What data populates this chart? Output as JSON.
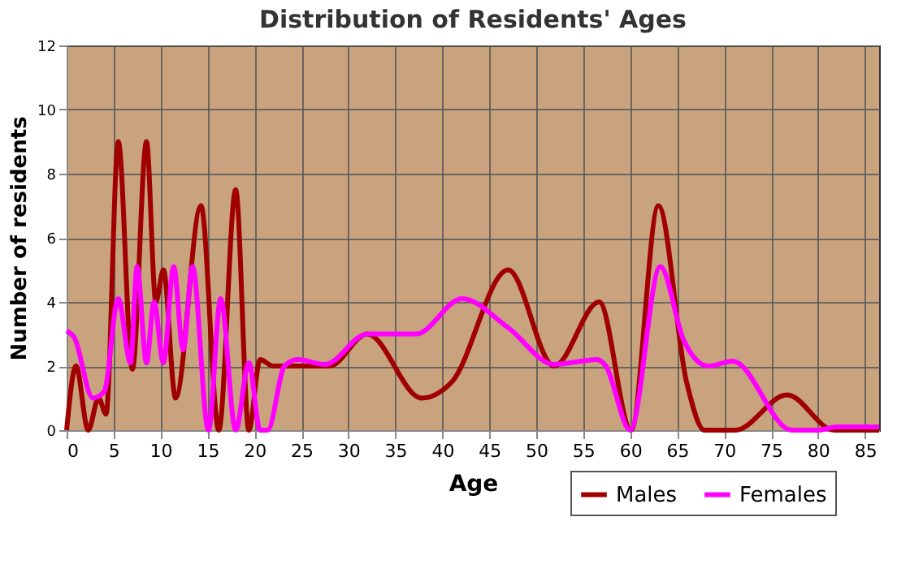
{
  "chart_data": {
    "type": "line",
    "title": "Distribution of Residents' Ages",
    "xlabel": "Age",
    "ylabel": "Number of residents",
    "xlim": [
      0,
      86.5
    ],
    "xticks": [
      0,
      5,
      10,
      15,
      20,
      25,
      30,
      35,
      40,
      45,
      50,
      55,
      60,
      65,
      70,
      75,
      80,
      85
    ],
    "ylim": [
      0,
      12
    ],
    "yticks": [
      0,
      2,
      4,
      6,
      8,
      10,
      12
    ],
    "grid": true,
    "legend": "bottom",
    "marker": "none",
    "line_style": "solid",
    "series": [
      {
        "name": "Males",
        "color": "#a00000",
        "x": [
          0,
          1,
          2.3,
          3.4,
          4.2,
          5.5,
          7,
          8.5,
          9.5,
          10.3,
          11.6,
          14.3,
          16.2,
          18,
          19.4,
          20.6,
          22,
          28,
          32,
          37.8,
          41,
          47,
          51.9,
          56.7,
          60.1,
          63,
          66,
          67.9,
          71.2,
          76.7,
          81.7,
          86.5
        ],
        "values": [
          0,
          2,
          0,
          1,
          0.5,
          9,
          1.9,
          9,
          4,
          5,
          1,
          7,
          0,
          7.5,
          0,
          2.2,
          2,
          2,
          3,
          1,
          1.5,
          5,
          2,
          4,
          0,
          7,
          1.5,
          0,
          0,
          1.1,
          0,
          0
        ]
      },
      {
        "name": "Females",
        "color": "#ff00ff",
        "x": [
          0,
          0.8,
          2.8,
          4,
          5.5,
          6.8,
          7.5,
          8.5,
          9.3,
          10.3,
          11.4,
          12.4,
          13.4,
          15.1,
          16.4,
          18,
          19.4,
          20.6,
          21.4,
          23.2,
          24.6,
          27.5,
          32,
          37.2,
          42.1,
          47,
          51.9,
          56.5,
          57.4,
          60,
          63.2,
          65.7,
          68.3,
          70.9,
          77.2,
          80,
          82,
          86.5
        ],
        "values": [
          3.1,
          2.9,
          1,
          1.2,
          4.1,
          2.1,
          5.1,
          2.1,
          4,
          2.1,
          5.1,
          2.5,
          5.1,
          0,
          4.1,
          0,
          2.1,
          0,
          0,
          2,
          2.2,
          2.05,
          3,
          3,
          4.1,
          3.2,
          2.05,
          2.2,
          2,
          0,
          5.1,
          2.8,
          2,
          2.15,
          0,
          0,
          0.1,
          0.1
        ]
      }
    ]
  }
}
